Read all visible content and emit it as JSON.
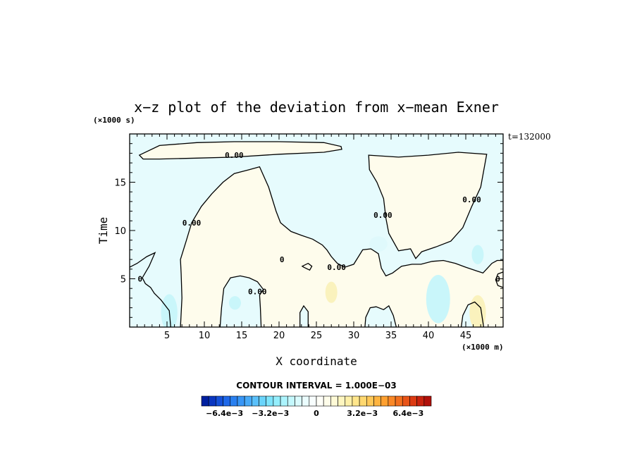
{
  "chart_data": {
    "type": "contour",
    "title": "x−z plot of the deviation from x−mean Exner",
    "xlabel": "X coordinate",
    "ylabel": "Time",
    "x_unit": "(×1000 m)",
    "y_unit": "(×1000 s)",
    "time_stamp": "t=132000",
    "xlim": [
      0,
      50
    ],
    "ylim": [
      0,
      20
    ],
    "x_ticks": [
      5,
      10,
      15,
      20,
      25,
      30,
      35,
      40,
      45
    ],
    "y_ticks": [
      5,
      10,
      15
    ],
    "contour_interval_text": "CONTOUR INTERVAL = 1.000E−03",
    "contour_labels": [
      {
        "text": "0.00",
        "x": 14,
        "y": 17.8
      },
      {
        "text": "0.00",
        "x": 8.3,
        "y": 10.8
      },
      {
        "text": "0.00",
        "x": 33.9,
        "y": 11.6
      },
      {
        "text": "0.00",
        "x": 45.8,
        "y": 13.2
      },
      {
        "text": "0",
        "x": 20.4,
        "y": 7
      },
      {
        "text": "0.00",
        "x": 27.7,
        "y": 6.2
      },
      {
        "text": "0.00",
        "x": 17.1,
        "y": 3.7
      },
      {
        "text": "0",
        "x": 1.4,
        "y": 5
      },
      {
        "text": "0",
        "x": 49.3,
        "y": 5
      }
    ],
    "zero_contours": [
      {
        "closed": true,
        "points": [
          [
            1.3,
            17.8
          ],
          [
            4,
            18.8
          ],
          [
            9,
            19.1
          ],
          [
            14,
            19.2
          ],
          [
            20,
            19.2
          ],
          [
            26,
            19.1
          ],
          [
            28.3,
            18.7
          ],
          [
            28.4,
            18.4
          ],
          [
            26,
            18.1
          ],
          [
            20,
            17.9
          ],
          [
            14,
            17.6
          ],
          [
            9,
            17.5
          ],
          [
            4,
            17.4
          ],
          [
            1.8,
            17.4
          ],
          [
            1.3,
            17.8
          ]
        ]
      },
      {
        "closed": false,
        "points": [
          [
            6.8,
            0
          ],
          [
            7,
            3
          ],
          [
            6.9,
            5.5
          ],
          [
            6.8,
            7
          ],
          [
            7.6,
            9
          ],
          [
            8.3,
            10.8
          ],
          [
            9.6,
            12.5
          ],
          [
            11,
            13.8
          ],
          [
            12.5,
            15
          ],
          [
            14,
            15.9
          ],
          [
            16,
            16.3
          ],
          [
            17.4,
            16.6
          ],
          [
            18.6,
            14.5
          ],
          [
            19.6,
            12
          ],
          [
            20.2,
            10.8
          ],
          [
            21.6,
            9.9
          ],
          [
            23,
            9.5
          ],
          [
            24.5,
            9.1
          ],
          [
            25.8,
            8.5
          ],
          [
            26.4,
            8
          ],
          [
            27,
            7.3
          ],
          [
            27.8,
            6.6
          ],
          [
            28.8,
            6.2
          ],
          [
            30,
            6.5
          ],
          [
            31.2,
            8
          ],
          [
            32.3,
            8.1
          ],
          [
            33.3,
            7.6
          ],
          [
            33.7,
            6.1
          ],
          [
            34.3,
            5.3
          ],
          [
            35.2,
            5.6
          ],
          [
            36.4,
            6.3
          ],
          [
            37.8,
            6.5
          ],
          [
            39,
            6.5
          ],
          [
            40.5,
            6.8
          ],
          [
            42,
            6.9
          ],
          [
            43.6,
            6.6
          ],
          [
            45,
            6.2
          ],
          [
            46.5,
            5.8
          ],
          [
            47.3,
            5.6
          ],
          [
            48.5,
            6.6
          ],
          [
            49.2,
            6.9
          ],
          [
            50,
            6.9
          ]
        ]
      },
      {
        "closed": true,
        "points": [
          [
            32,
            17.8
          ],
          [
            36,
            17.6
          ],
          [
            40,
            17.8
          ],
          [
            44,
            18.1
          ],
          [
            47.8,
            17.9
          ],
          [
            47,
            14.5
          ],
          [
            45.8,
            12.5
          ],
          [
            44.6,
            10.3
          ],
          [
            43,
            8.9
          ],
          [
            41,
            8.3
          ],
          [
            39.1,
            7.8
          ],
          [
            38.3,
            7.1
          ],
          [
            37.6,
            8.1
          ],
          [
            36,
            7.9
          ],
          [
            34.7,
            9.7
          ],
          [
            34.3,
            11.3
          ],
          [
            34,
            13.3
          ],
          [
            33.1,
            15
          ],
          [
            32.1,
            16.3
          ],
          [
            32,
            17.8
          ]
        ]
      },
      {
        "closed": false,
        "points": [
          [
            0,
            6.2
          ],
          [
            1,
            6.6
          ],
          [
            2.3,
            7.3
          ],
          [
            3.4,
            7.7
          ],
          [
            2.6,
            6.3
          ],
          [
            1.7,
            5.1
          ],
          [
            2.1,
            4.5
          ],
          [
            2.8,
            4.1
          ],
          [
            3.3,
            3.5
          ],
          [
            4.2,
            2.8
          ],
          [
            5.3,
            1.7
          ],
          [
            5.5,
            0
          ]
        ]
      },
      {
        "closed": false,
        "points": [
          [
            12.1,
            0
          ],
          [
            12.3,
            2
          ],
          [
            12.6,
            4
          ],
          [
            13.5,
            5.1
          ],
          [
            14.8,
            5.3
          ],
          [
            16,
            5.1
          ],
          [
            17.1,
            4.7
          ],
          [
            17.9,
            3.9
          ],
          [
            17.4,
            3.3
          ],
          [
            17.5,
            2
          ],
          [
            17.6,
            0
          ]
        ]
      },
      {
        "closed": true,
        "points": [
          [
            23.1,
            6.3
          ],
          [
            23.9,
            6.6
          ],
          [
            24.4,
            6.3
          ],
          [
            24.1,
            5.9
          ],
          [
            23.3,
            6.2
          ],
          [
            23.1,
            6.3
          ]
        ]
      },
      {
        "closed": false,
        "points": [
          [
            22.8,
            0
          ],
          [
            22.8,
            1.5
          ],
          [
            23.3,
            2.2
          ],
          [
            23.9,
            1.6
          ],
          [
            23.9,
            0
          ]
        ]
      },
      {
        "closed": false,
        "points": [
          [
            31.5,
            0
          ],
          [
            31.6,
            1
          ],
          [
            32.2,
            2
          ],
          [
            33,
            2.1
          ],
          [
            34,
            1.8
          ],
          [
            34.7,
            2.2
          ],
          [
            35.3,
            1.2
          ],
          [
            35.7,
            0
          ]
        ]
      },
      {
        "closed": false,
        "points": [
          [
            44.4,
            0
          ],
          [
            44.6,
            1.2
          ],
          [
            45.3,
            2.3
          ],
          [
            46.2,
            2.6
          ],
          [
            47,
            2
          ],
          [
            47.4,
            0
          ]
        ]
      },
      {
        "closed": false,
        "points": [
          [
            50,
            5.7
          ],
          [
            49.3,
            5.5
          ],
          [
            49,
            4.9
          ],
          [
            49.3,
            4.3
          ],
          [
            50,
            4.1
          ]
        ]
      }
    ],
    "background_fills": [
      {
        "level": "small_negative",
        "color": "#e6fbfd"
      },
      {
        "level": "small_positive",
        "color": "#fefcec"
      }
    ],
    "anomalies": [
      {
        "cx": 5.3,
        "cy": 1.5,
        "rx": 1.1,
        "ry": 1.9,
        "color": "#c9f6fa"
      },
      {
        "cx": 14.1,
        "cy": 2.5,
        "rx": 0.8,
        "ry": 0.7,
        "color": "#c9f6fa"
      },
      {
        "cx": 27,
        "cy": 3.6,
        "rx": 0.8,
        "ry": 1.1,
        "color": "#faf2bd"
      },
      {
        "cx": 41.3,
        "cy": 2.9,
        "rx": 1.6,
        "ry": 2.5,
        "color": "#c9f6fa"
      },
      {
        "cx": 46.6,
        "cy": 1.5,
        "rx": 1.1,
        "ry": 1.8,
        "color": "#faf2bd"
      },
      {
        "cx": 46.6,
        "cy": 7.5,
        "rx": 0.8,
        "ry": 1,
        "color": "#c9f6fa"
      },
      {
        "cx": 33.3,
        "cy": 8.6,
        "rx": 1.2,
        "ry": 0.8,
        "color": "#dff9fc"
      }
    ],
    "colorbar": {
      "colors": [
        "#0020a0",
        "#0a36c0",
        "#1450d8",
        "#1e68e8",
        "#2a80f0",
        "#3896f6",
        "#48aaf8",
        "#5ac0fa",
        "#6ad4fb",
        "#7ee4fc",
        "#94eefc",
        "#acf4fd",
        "#c4f8fd",
        "#dafbfe",
        "#eafdfe",
        "#f8fefe",
        "#fffff8",
        "#fffdea",
        "#fffad6",
        "#fff6c0",
        "#fff0a8",
        "#ffe68c",
        "#ffd870",
        "#ffc858",
        "#ffb440",
        "#ffa030",
        "#fa8826",
        "#f2701e",
        "#e85418",
        "#dc3a12",
        "#c8220e",
        "#b0100a"
      ],
      "tick_labels": [
        "−6.4e−3",
        "−3.2e−3",
        "0",
        "3.2e−3",
        "6.4e−3"
      ],
      "tick_values": [
        -0.0064,
        -0.0032,
        0,
        0.0032,
        0.0064
      ],
      "range": [
        -0.008,
        0.008
      ]
    }
  }
}
